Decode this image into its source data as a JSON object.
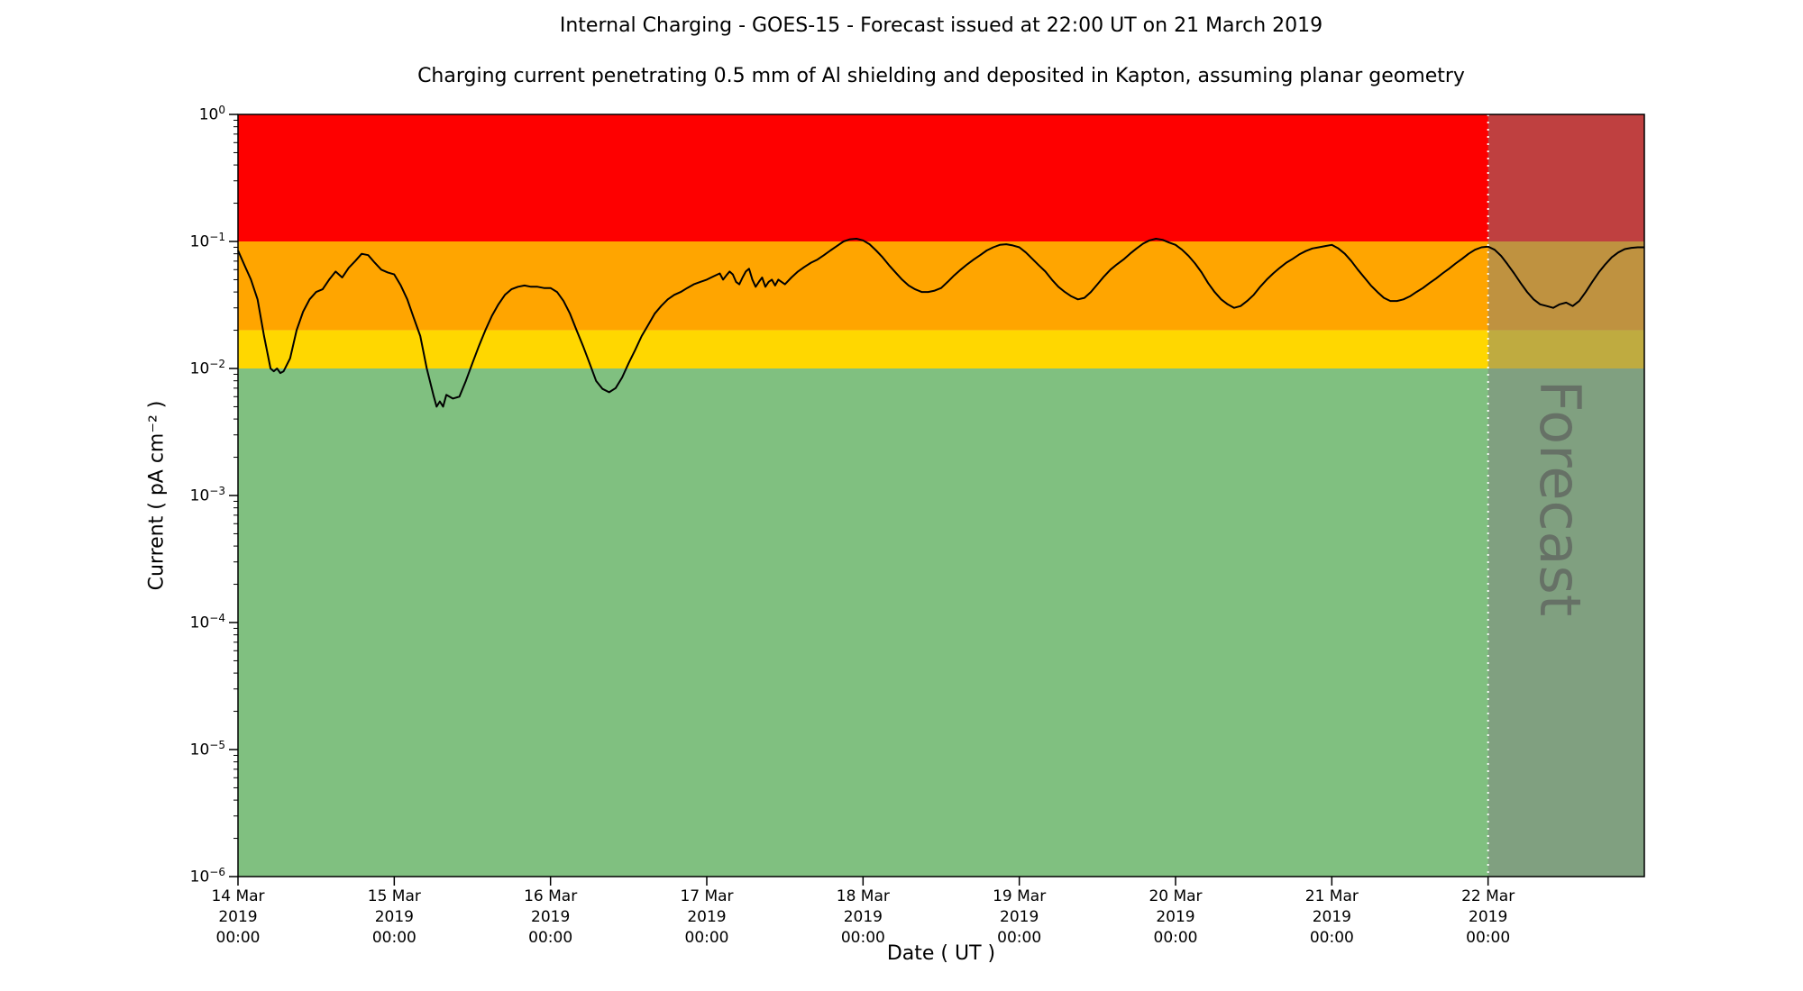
{
  "header": {
    "title": "Internal Charging - GOES-15 - Forecast issued at 22:00 UT on 21 March 2019",
    "subtitle": "Charging current penetrating 0.5 mm of Al shielding and deposited in Kapton, assuming planar geometry"
  },
  "chart_data": {
    "type": "line",
    "title": "Internal Charging - GOES-15 - Forecast issued at 22:00 UT on 21 March 2019",
    "subtitle": "Charging current penetrating 0.5 mm of Al shielding and deposited in Kapton, assuming planar geometry",
    "xlabel": "Date ( UT )",
    "ylabel": "Current ( pA cm⁻² )",
    "y_scale": "log",
    "y_range": [
      1e-06,
      1
    ],
    "x_range_hours": [
      0,
      216
    ],
    "grid": false,
    "legend": "none",
    "bands": [
      {
        "name": "red",
        "from": 0.1,
        "to": 1.0,
        "color": "#fe0000"
      },
      {
        "name": "orange",
        "from": 0.02,
        "to": 0.1,
        "color": "#ffa500"
      },
      {
        "name": "yellow",
        "from": 0.01,
        "to": 0.02,
        "color": "#ffd700"
      },
      {
        "name": "green",
        "from": 1e-06,
        "to": 0.01,
        "color": "#80c080"
      }
    ],
    "forecast": {
      "label": "Forecast",
      "start_hours": 192,
      "overlay_color": "rgba(128,128,128,0.5)",
      "divider_color": "#ffffff",
      "watermark_color": "#595959"
    },
    "x_axis": {
      "ticks": [
        {
          "hours": 0,
          "lines": [
            "14 Mar",
            "2019",
            "00:00"
          ]
        },
        {
          "hours": 24,
          "lines": [
            "15 Mar",
            "2019",
            "00:00"
          ]
        },
        {
          "hours": 48,
          "lines": [
            "16 Mar",
            "2019",
            "00:00"
          ]
        },
        {
          "hours": 72,
          "lines": [
            "17 Mar",
            "2019",
            "00:00"
          ]
        },
        {
          "hours": 96,
          "lines": [
            "18 Mar",
            "2019",
            "00:00"
          ]
        },
        {
          "hours": 120,
          "lines": [
            "19 Mar",
            "2019",
            "00:00"
          ]
        },
        {
          "hours": 144,
          "lines": [
            "20 Mar",
            "2019",
            "00:00"
          ]
        },
        {
          "hours": 168,
          "lines": [
            "21 Mar",
            "2019",
            "00:00"
          ]
        },
        {
          "hours": 192,
          "lines": [
            "22 Mar",
            "2019",
            "00:00"
          ]
        }
      ]
    },
    "y_axis": {
      "ticks": [
        {
          "value": 1.0,
          "exponent": "0"
        },
        {
          "value": 0.1,
          "exponent": "−1"
        },
        {
          "value": 0.01,
          "exponent": "−2"
        },
        {
          "value": 0.001,
          "exponent": "−3"
        },
        {
          "value": 0.0001,
          "exponent": "−4"
        },
        {
          "value": 1e-05,
          "exponent": "−5"
        },
        {
          "value": 1e-06,
          "exponent": "−6"
        }
      ]
    },
    "series": [
      {
        "name": "charging-current",
        "color": "#000000",
        "units": "pA cm⁻²",
        "points": [
          [
            0,
            0.085
          ],
          [
            1,
            0.065
          ],
          [
            2,
            0.05
          ],
          [
            3,
            0.035
          ],
          [
            4,
            0.018
          ],
          [
            5,
            0.01
          ],
          [
            5.5,
            0.0095
          ],
          [
            6,
            0.01
          ],
          [
            6.5,
            0.0092
          ],
          [
            7,
            0.0095
          ],
          [
            8,
            0.012
          ],
          [
            9,
            0.02
          ],
          [
            10,
            0.028
          ],
          [
            11,
            0.035
          ],
          [
            12,
            0.04
          ],
          [
            13,
            0.042
          ],
          [
            14,
            0.05
          ],
          [
            15,
            0.058
          ],
          [
            16,
            0.052
          ],
          [
            17,
            0.062
          ],
          [
            18,
            0.07
          ],
          [
            19,
            0.08
          ],
          [
            20,
            0.078
          ],
          [
            21,
            0.068
          ],
          [
            22,
            0.06
          ],
          [
            23,
            0.057
          ],
          [
            24,
            0.055
          ],
          [
            25,
            0.045
          ],
          [
            26,
            0.035
          ],
          [
            27,
            0.025
          ],
          [
            28,
            0.018
          ],
          [
            29,
            0.01
          ],
          [
            30,
            0.0062
          ],
          [
            30.5,
            0.005
          ],
          [
            31,
            0.0055
          ],
          [
            31.5,
            0.005
          ],
          [
            32,
            0.0062
          ],
          [
            33,
            0.0058
          ],
          [
            34,
            0.006
          ],
          [
            35,
            0.008
          ],
          [
            36,
            0.011
          ],
          [
            37,
            0.015
          ],
          [
            38,
            0.02
          ],
          [
            39,
            0.026
          ],
          [
            40,
            0.032
          ],
          [
            41,
            0.038
          ],
          [
            42,
            0.042
          ],
          [
            43,
            0.044
          ],
          [
            44,
            0.045
          ],
          [
            45,
            0.044
          ],
          [
            46,
            0.044
          ],
          [
            47,
            0.043
          ],
          [
            48,
            0.043
          ],
          [
            49,
            0.04
          ],
          [
            50,
            0.034
          ],
          [
            51,
            0.027
          ],
          [
            52,
            0.02
          ],
          [
            53,
            0.015
          ],
          [
            54,
            0.011
          ],
          [
            55,
            0.008
          ],
          [
            56,
            0.0069
          ],
          [
            57,
            0.0065
          ],
          [
            58,
            0.007
          ],
          [
            59,
            0.0085
          ],
          [
            60,
            0.011
          ],
          [
            61,
            0.014
          ],
          [
            62,
            0.018
          ],
          [
            63,
            0.022
          ],
          [
            64,
            0.027
          ],
          [
            65,
            0.031
          ],
          [
            66,
            0.035
          ],
          [
            67,
            0.038
          ],
          [
            68,
            0.04
          ],
          [
            69,
            0.043
          ],
          [
            70,
            0.046
          ],
          [
            71,
            0.048
          ],
          [
            72,
            0.05
          ],
          [
            73,
            0.053
          ],
          [
            74,
            0.056
          ],
          [
            74.5,
            0.05
          ],
          [
            75,
            0.054
          ],
          [
            75.5,
            0.058
          ],
          [
            76,
            0.055
          ],
          [
            76.5,
            0.048
          ],
          [
            77,
            0.046
          ],
          [
            77.5,
            0.052
          ],
          [
            78,
            0.058
          ],
          [
            78.5,
            0.061
          ],
          [
            79,
            0.05
          ],
          [
            79.5,
            0.044
          ],
          [
            80,
            0.048
          ],
          [
            80.5,
            0.052
          ],
          [
            81,
            0.044
          ],
          [
            81.5,
            0.048
          ],
          [
            82,
            0.05
          ],
          [
            82.5,
            0.045
          ],
          [
            83,
            0.05
          ],
          [
            84,
            0.046
          ],
          [
            85,
            0.052
          ],
          [
            86,
            0.058
          ],
          [
            87,
            0.063
          ],
          [
            88,
            0.068
          ],
          [
            89,
            0.072
          ],
          [
            90,
            0.078
          ],
          [
            91,
            0.085
          ],
          [
            92,
            0.092
          ],
          [
            93,
            0.1
          ],
          [
            94,
            0.104
          ],
          [
            95,
            0.105
          ],
          [
            96,
            0.102
          ],
          [
            97,
            0.095
          ],
          [
            98,
            0.085
          ],
          [
            99,
            0.075
          ],
          [
            100,
            0.065
          ],
          [
            101,
            0.057
          ],
          [
            102,
            0.05
          ],
          [
            103,
            0.045
          ],
          [
            104,
            0.042
          ],
          [
            105,
            0.04
          ],
          [
            106,
            0.04
          ],
          [
            107,
            0.041
          ],
          [
            108,
            0.043
          ],
          [
            109,
            0.048
          ],
          [
            110,
            0.054
          ],
          [
            111,
            0.06
          ],
          [
            112,
            0.066
          ],
          [
            113,
            0.072
          ],
          [
            114,
            0.078
          ],
          [
            115,
            0.085
          ],
          [
            116,
            0.09
          ],
          [
            117,
            0.094
          ],
          [
            118,
            0.095
          ],
          [
            119,
            0.093
          ],
          [
            120,
            0.09
          ],
          [
            121,
            0.082
          ],
          [
            122,
            0.073
          ],
          [
            123,
            0.065
          ],
          [
            124,
            0.058
          ],
          [
            125,
            0.05
          ],
          [
            126,
            0.044
          ],
          [
            127,
            0.04
          ],
          [
            128,
            0.037
          ],
          [
            129,
            0.035
          ],
          [
            130,
            0.036
          ],
          [
            131,
            0.04
          ],
          [
            132,
            0.046
          ],
          [
            133,
            0.053
          ],
          [
            134,
            0.06
          ],
          [
            135,
            0.066
          ],
          [
            136,
            0.072
          ],
          [
            137,
            0.08
          ],
          [
            138,
            0.088
          ],
          [
            139,
            0.096
          ],
          [
            140,
            0.102
          ],
          [
            141,
            0.105
          ],
          [
            142,
            0.103
          ],
          [
            143,
            0.098
          ],
          [
            144,
            0.094
          ],
          [
            145,
            0.086
          ],
          [
            146,
            0.077
          ],
          [
            147,
            0.067
          ],
          [
            148,
            0.057
          ],
          [
            149,
            0.047
          ],
          [
            150,
            0.04
          ],
          [
            151,
            0.035
          ],
          [
            152,
            0.032
          ],
          [
            153,
            0.03
          ],
          [
            154,
            0.031
          ],
          [
            155,
            0.034
          ],
          [
            156,
            0.038
          ],
          [
            157,
            0.044
          ],
          [
            158,
            0.05
          ],
          [
            159,
            0.056
          ],
          [
            160,
            0.062
          ],
          [
            161,
            0.068
          ],
          [
            162,
            0.073
          ],
          [
            163,
            0.079
          ],
          [
            164,
            0.084
          ],
          [
            165,
            0.088
          ],
          [
            166,
            0.09
          ],
          [
            167,
            0.092
          ],
          [
            168,
            0.094
          ],
          [
            169,
            0.088
          ],
          [
            170,
            0.08
          ],
          [
            171,
            0.07
          ],
          [
            172,
            0.06
          ],
          [
            173,
            0.052
          ],
          [
            174,
            0.045
          ],
          [
            175,
            0.04
          ],
          [
            176,
            0.036
          ],
          [
            177,
            0.034
          ],
          [
            178,
            0.034
          ],
          [
            179,
            0.035
          ],
          [
            180,
            0.037
          ],
          [
            181,
            0.04
          ],
          [
            182,
            0.043
          ],
          [
            183,
            0.047
          ],
          [
            184,
            0.051
          ],
          [
            185,
            0.056
          ],
          [
            186,
            0.061
          ],
          [
            187,
            0.067
          ],
          [
            188,
            0.073
          ],
          [
            189,
            0.08
          ],
          [
            190,
            0.086
          ],
          [
            191,
            0.09
          ],
          [
            192,
            0.091
          ],
          [
            193,
            0.086
          ],
          [
            194,
            0.077
          ],
          [
            195,
            0.066
          ],
          [
            196,
            0.056
          ],
          [
            197,
            0.047
          ],
          [
            198,
            0.04
          ],
          [
            199,
            0.035
          ],
          [
            200,
            0.032
          ],
          [
            201,
            0.031
          ],
          [
            202,
            0.03
          ],
          [
            203,
            0.032
          ],
          [
            204,
            0.033
          ],
          [
            205,
            0.031
          ],
          [
            206,
            0.034
          ],
          [
            207,
            0.04
          ],
          [
            208,
            0.048
          ],
          [
            209,
            0.057
          ],
          [
            210,
            0.066
          ],
          [
            211,
            0.075
          ],
          [
            212,
            0.082
          ],
          [
            213,
            0.087
          ],
          [
            214,
            0.089
          ],
          [
            215,
            0.09
          ],
          [
            216,
            0.09
          ]
        ]
      }
    ]
  }
}
